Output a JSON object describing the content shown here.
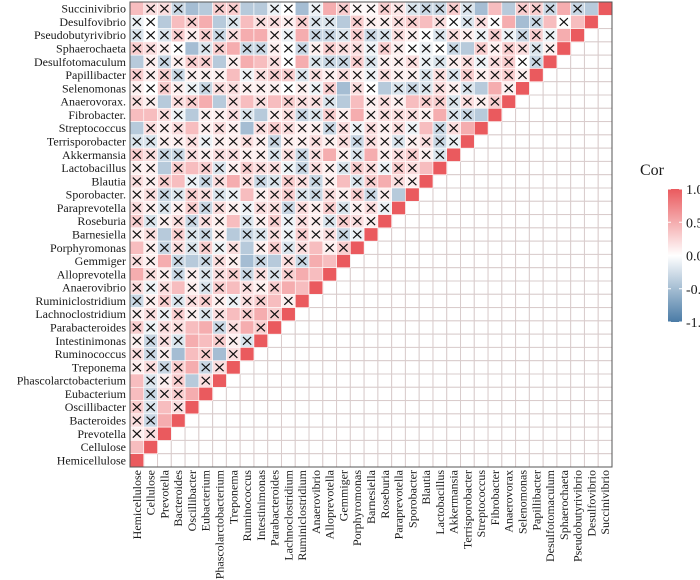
{
  "chart_data": {
    "type": "heatmap",
    "title": "",
    "legend_title": "Cor",
    "legend_placement": "right",
    "legend_ticks": [
      "1.0",
      "0.5",
      "0.0",
      "-0.5",
      "-1.0"
    ],
    "legend_range": [
      -1,
      1
    ],
    "colors": {
      "high": "#EA5A5E",
      "mid": "#FFFFFF",
      "low": "#4A7BA6"
    },
    "insignificant_marker": "×",
    "row_labels": [
      "Succinivibrio",
      "Desulfovibrio",
      "Pseudobutyrivibrio",
      "Sphaerochaeta",
      "Desulfotomaculum",
      "Papillibacter",
      "Selenomonas",
      "Anaerovorax.",
      "Fibrobacter.",
      "Streptococcus",
      "Terrisporobacter",
      "Akkermansia",
      "Lactobacillus",
      "Blautia",
      "Sporobacter.",
      "Paraprevotella",
      "Roseburia",
      "Barnesiella",
      "Porphyromonas",
      "Gemmiger",
      "Alloprevotella",
      "Anaerovibrio",
      "Ruminiclostridium",
      "Lachnoclostridium",
      "Parabacteroides",
      "Intestinimonas",
      "Ruminococcus",
      "Treponema",
      "Phascolarctobacterium",
      "Eubacterium",
      "Oscillibacter",
      "Bacteroides",
      "Prevotella",
      "Cellulose",
      "Hemicellulose"
    ],
    "col_labels": [
      "Hemicellulose",
      "Cellulose",
      "Prevotella",
      "Bacteroides",
      "Oscillibacter",
      "Eubacterium",
      "Phascolarctobacterium",
      "Treponema",
      "Ruminococcus",
      "Intestinimonas",
      "Parabacteroides",
      "Lachnoclostridium",
      "Ruminiclostridium",
      "Anaerovibrio",
      "Alloprevotella",
      "Gemmiger",
      "Porphyromonas",
      "Barnesiella",
      "Roseburia",
      "Paraprevotella",
      "Sporobacter",
      "Blautia",
      "Lactobacillus",
      "Akkermansia",
      "Terrisporobacter",
      "Streptococcus",
      "Fibrobacter",
      "Anaerovorax",
      "Selenomonas",
      "Papillibacter",
      "Desulfotomaculum",
      "Sphaerochaeta",
      "Pseudobutyrivibrio",
      "Desulfovibrio",
      "Succinivibrio"
    ],
    "values": [
      [
        0.4,
        0.2,
        0.2,
        -0.3,
        -0.5,
        -0.4,
        0.3,
        0.3,
        -0.4,
        -0.4,
        -0.1,
        0,
        -0.5,
        -0.1,
        0.5,
        0.3,
        0.05,
        0.05,
        0.3,
        0.15,
        -0.2,
        -0.3,
        -0.3,
        0.3,
        -0.2,
        -0.5,
        0.4,
        -0.4,
        0.3,
        0.3,
        -0.3,
        0.5,
        -0.3,
        -0.4,
        1
      ],
      [
        -0.1,
        0,
        -0.4,
        0.4,
        0.3,
        0.5,
        -0.4,
        -0.2,
        0.4,
        0.2,
        0.2,
        0.1,
        0.3,
        -0.2,
        -0.2,
        -0.4,
        0.3,
        0.1,
        0.1,
        0.2,
        0.3,
        0.4,
        0.2,
        0,
        -0.2,
        0.2,
        0,
        0.5,
        -0.5,
        -0.3,
        0.4,
        0,
        0.4,
        1
      ],
      [
        -0.2,
        0,
        -0.2,
        0.3,
        0.1,
        0.3,
        -0.3,
        0.2,
        0.5,
        0.5,
        0.1,
        -0.1,
        0.5,
        -0.3,
        -0.3,
        -0.2,
        0.3,
        -0.3,
        -0.2,
        0.2,
        0.1,
        0,
        -0.2,
        0.2,
        0.1,
        -0.1,
        0.3,
        -0.1,
        -0.3,
        0.3,
        -0.1,
        0.5,
        1
      ],
      [
        0.3,
        0.2,
        0.1,
        0,
        -0.5,
        -0.2,
        0.3,
        0.5,
        -0.3,
        -0.3,
        0.1,
        0,
        -0.3,
        0.1,
        0.3,
        0.2,
        0.2,
        -0.1,
        0.3,
        0.1,
        0,
        -0.1,
        0,
        -0.3,
        -0.4,
        0.3,
        0.1,
        0.3,
        0.2,
        -0.2,
        0.1,
        1
      ],
      [
        -0.4,
        0.1,
        -0.3,
        0.1,
        0.3,
        0.3,
        -0.4,
        0.1,
        0.5,
        0.4,
        0.2,
        0,
        0.5,
        -0.2,
        -0.3,
        -0.3,
        0.3,
        -0.2,
        0.1,
        0.1,
        0.2,
        -0.1,
        -0.2,
        0.1,
        0.2,
        -0.1,
        0.2,
        0.3,
        0,
        -0.3,
        1
      ],
      [
        0.3,
        0.1,
        0.3,
        -0.3,
        0.1,
        0.1,
        0.1,
        0.4,
        -0.1,
        0.2,
        0.3,
        0.3,
        -0.2,
        0.2,
        0.1,
        0.2,
        0.1,
        -0.1,
        0.2,
        0.1,
        0.1,
        -0.2,
        0.2,
        -0.2,
        0.3,
        0.1,
        0.2,
        0.3,
        0.1,
        1
      ],
      [
        0.1,
        0,
        0.3,
        0.1,
        -0.1,
        -0.3,
        0.2,
        0.2,
        0.1,
        0.1,
        0.1,
        0,
        0.1,
        -0.1,
        0.3,
        -0.5,
        0.2,
        0,
        -0.4,
        -0.2,
        -0.3,
        -0.2,
        0.2,
        0.1,
        -0.2,
        -0.4,
        0.5,
        0.1,
        1
      ],
      [
        0.2,
        0.1,
        -0.4,
        0.2,
        0.3,
        0.5,
        -0.4,
        0.2,
        0.4,
        0.2,
        0.4,
        0.3,
        0.2,
        0.2,
        -0.2,
        -0.4,
        0.4,
        0.1,
        0.2,
        0.1,
        0.4,
        0.3,
        0.3,
        -0.2,
        0.2,
        0.1,
        0.3,
        1
      ],
      [
        0.4,
        0.4,
        0.2,
        -0.1,
        -0.4,
        0.1,
        0.1,
        0.2,
        -0.2,
        -0.4,
        0.1,
        0.2,
        -0.3,
        -0.2,
        0.3,
        0.1,
        0.5,
        0.1,
        0.2,
        0.2,
        0.2,
        0.1,
        0.5,
        -0.2,
        -0.3,
        -0.4,
        1
      ],
      [
        -0.4,
        0.2,
        0.1,
        0.2,
        0.4,
        0.1,
        0.2,
        0.1,
        -0.5,
        0.2,
        0.3,
        0.2,
        0.1,
        0.1,
        -0.3,
        0.2,
        -0.1,
        0.2,
        0.1,
        0.2,
        -0.1,
        0.4,
        -0.3,
        0.2,
        0.5,
        1
      ],
      [
        -0.2,
        -0.2,
        0.1,
        0.1,
        0.2,
        -0.1,
        0.1,
        0.1,
        0.2,
        0.1,
        -0.3,
        0.1,
        0.1,
        0.2,
        0.1,
        0.2,
        -0.3,
        0.2,
        0.1,
        -0.2,
        0.1,
        0.2,
        -0.3,
        -0.1,
        1
      ],
      [
        0.3,
        0.2,
        -0.3,
        -0.3,
        0.2,
        0.1,
        0.2,
        0.2,
        0.1,
        0.1,
        -0.2,
        0.2,
        -0.3,
        0.2,
        0.5,
        0.1,
        -0.2,
        0.5,
        0.1,
        0.2,
        0.3,
        0.1,
        -0.2,
        1
      ],
      [
        0.1,
        0.1,
        -0.4,
        0.3,
        0.4,
        0.3,
        -0.2,
        0.1,
        0.3,
        0.2,
        0.2,
        -0.1,
        -0.3,
        0.2,
        0.1,
        -0.2,
        0.3,
        0.2,
        -0.1,
        0.3,
        0.2,
        0.4,
        1
      ],
      [
        0.2,
        0.1,
        0.3,
        0.4,
        -0.1,
        -0.3,
        0.2,
        0.5,
        0.2,
        -0.3,
        -0.2,
        0.3,
        0.2,
        -0.3,
        0.1,
        0.4,
        -0.2,
        0.3,
        0.5,
        0.2,
        0.1,
        1
      ],
      [
        0.1,
        0.2,
        -0.3,
        -0.2,
        0.3,
        0.2,
        -0.2,
        -0.1,
        0.4,
        0.1,
        0.2,
        0.3,
        -0.2,
        -0.3,
        0.2,
        0.1,
        0.3,
        -0.3,
        0.1,
        -0.4,
        1
      ],
      [
        0.2,
        0.1,
        -0.2,
        0.1,
        0.3,
        -0.3,
        0.2,
        0.1,
        -0.1,
        0.2,
        0.2,
        -0.3,
        0.2,
        0.1,
        0.3,
        -0.2,
        0.1,
        0.2,
        -0.1,
        1
      ],
      [
        0.3,
        -0.2,
        0.1,
        0.2,
        -0.3,
        0.2,
        0.1,
        0.4,
        -0.2,
        0.1,
        0.3,
        -0.1,
        0.2,
        0.1,
        -0.2,
        0.3,
        0.2,
        0.1,
        1
      ],
      [
        0.1,
        0.2,
        -0.4,
        0.3,
        -0.2,
        -0.3,
        0.1,
        -0.4,
        -0.3,
        -0.2,
        0.2,
        -0.1,
        0.3,
        0.1,
        0.2,
        -0.3,
        -0.1,
        1
      ],
      [
        0.4,
        0.1,
        -0.3,
        0.2,
        -0.2,
        0.3,
        -0.1,
        0.2,
        -0.4,
        0.1,
        0.3,
        -0.2,
        0.2,
        0.4,
        0.1,
        0.3,
        1
      ],
      [
        0.2,
        0.1,
        0.5,
        -0.3,
        -0.4,
        -0.3,
        0.2,
        0.1,
        -0.5,
        -0.3,
        -0.4,
        0.2,
        -0.3,
        0.5,
        0.4,
        1
      ],
      [
        0.5,
        0.2,
        0.1,
        -0.3,
        0.1,
        -0.2,
        0.2,
        0.3,
        -0.3,
        0.2,
        -0.2,
        0.3,
        0.5,
        0.4,
        1
      ],
      [
        0.2,
        -0.1,
        0.2,
        0.4,
        0.1,
        -0.2,
        0.3,
        0.4,
        0.2,
        0.1,
        0.3,
        0.5,
        0.4,
        1
      ],
      [
        -0.3,
        0.1,
        0.3,
        -0.2,
        0.2,
        0.3,
        0.1,
        -0.1,
        0.2,
        0.3,
        0.4,
        0.1,
        1
      ],
      [
        0.1,
        0.2,
        -0.1,
        0.3,
        0.1,
        -0.2,
        0.2,
        0.4,
        0.3,
        0.5,
        0.3,
        1
      ],
      [
        0.3,
        -0.1,
        0.2,
        0.2,
        0.4,
        0.5,
        -0.3,
        0.2,
        0.5,
        0.3,
        1
      ],
      [
        0.1,
        -0.3,
        0.2,
        -0.2,
        0.5,
        0.4,
        0.3,
        0.1,
        -0.2,
        1
      ],
      [
        0.2,
        -0.3,
        0.1,
        -0.5,
        0.4,
        0.3,
        -0.5,
        0.2,
        1
      ],
      [
        0.1,
        0.2,
        -0.3,
        0.3,
        0.5,
        -0.3,
        0.2,
        1
      ],
      [
        0.4,
        -0.2,
        0.1,
        0.3,
        -0.4,
        0.2,
        1
      ],
      [
        0.4,
        -0.3,
        0.2,
        0.3,
        0.5,
        1
      ],
      [
        0.3,
        -0.2,
        0.4,
        0.2,
        1
      ],
      [
        0.2,
        -0.3,
        0.5,
        1
      ],
      [
        0.1,
        0.2,
        1
      ],
      [
        0.4,
        1
      ],
      [
        1
      ]
    ]
  }
}
